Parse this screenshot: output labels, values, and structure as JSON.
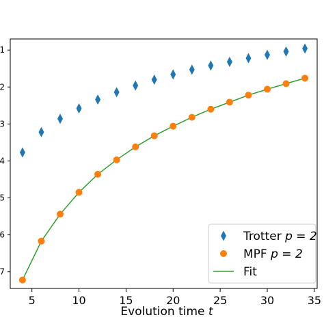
{
  "chart_data": {
    "type": "scatter",
    "xlabel": "Evolution time",
    "xlabel_var": "t",
    "xlim": [
      2.7,
      35.3
    ],
    "ylim": [
      -7.45,
      -0.7
    ],
    "x_ticks": [
      5,
      10,
      15,
      20,
      25,
      30,
      35
    ],
    "x_tick_labels": [
      "5",
      "10",
      "15",
      "20",
      "25",
      "30",
      "35"
    ],
    "y_ticks": [
      -1,
      -2,
      -3,
      -4,
      -5,
      -6,
      -7
    ],
    "y_tick_labels": [
      "1",
      "2",
      "3",
      "4",
      "5",
      "6",
      "7"
    ],
    "grid": false,
    "legend_position": "bottom-right",
    "series": [
      {
        "name": "Trotter",
        "label_math": "p = 2",
        "kind": "points",
        "marker": "diamond",
        "color": "#1f77b4",
        "x": [
          4,
          6,
          8,
          10,
          12,
          14,
          16,
          18,
          20,
          22,
          24,
          26,
          28,
          30,
          32,
          34
        ],
        "y": [
          -3.77,
          -3.22,
          -2.86,
          -2.58,
          -2.34,
          -2.14,
          -1.96,
          -1.8,
          -1.66,
          -1.53,
          -1.42,
          -1.32,
          -1.22,
          -1.13,
          -1.04,
          -0.96
        ]
      },
      {
        "name": "MPF",
        "label_math": "p = 2",
        "kind": "points",
        "marker": "circle",
        "color": "#ff7f0e",
        "x": [
          4,
          6,
          8,
          10,
          12,
          14,
          16,
          18,
          20,
          22,
          24,
          26,
          28,
          30,
          32,
          34
        ],
        "y": [
          -7.22,
          -6.17,
          -5.44,
          -4.85,
          -4.36,
          -3.97,
          -3.62,
          -3.32,
          -3.06,
          -2.82,
          -2.6,
          -2.41,
          -2.22,
          -2.06,
          -1.91,
          -1.76
        ]
      },
      {
        "name": "Fit",
        "kind": "line",
        "color": "#2ca02c",
        "x": [
          4,
          6,
          8,
          10,
          12,
          14,
          16,
          18,
          20,
          22,
          24,
          26,
          28,
          30,
          32,
          34
        ],
        "y": [
          -7.22,
          -6.17,
          -5.44,
          -4.85,
          -4.36,
          -3.97,
          -3.62,
          -3.32,
          -3.06,
          -2.82,
          -2.6,
          -2.41,
          -2.22,
          -2.06,
          -1.91,
          -1.76
        ]
      }
    ]
  }
}
